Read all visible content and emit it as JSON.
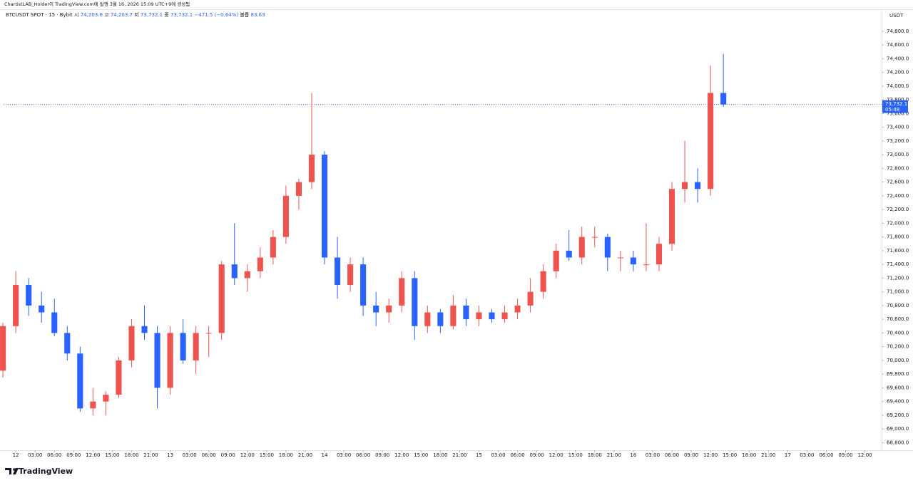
{
  "chart_data": {
    "type": "candlestick",
    "publisher_note": "ChartistLAB_Holder이 TradingView.com에 발행 3월 16, 2026 15:09 UTC+9에 생성됨",
    "title": "BTCUSDT SPOT · 15 · Bybit",
    "ohlc_legend": [
      {
        "label": "시",
        "value": "74,203.6"
      },
      {
        "label": "고",
        "value": "74,203.7"
      },
      {
        "label": "저",
        "value": "73,732.1"
      },
      {
        "label": "종",
        "value": "73,732.1"
      }
    ],
    "change": "−471.5 (−0.64%)",
    "volume": {
      "label": "볼륨",
      "value": "83.63"
    },
    "y_unit": "USDT",
    "brand": "TradingView",
    "up_color": "#ef5350",
    "down_color": "#2962ff",
    "last_price": {
      "value": 73732.1,
      "label": "73,732.1"
    },
    "countdown": "05:48",
    "candles": {
      "x": [
        -2,
        0,
        2,
        4,
        6,
        8,
        10,
        12,
        14,
        16,
        18,
        20,
        22,
        24,
        26,
        28,
        30,
        32,
        34,
        36,
        38,
        40,
        42,
        44,
        46,
        48,
        50,
        52,
        54,
        56,
        58,
        60,
        62,
        64,
        66,
        68,
        70,
        72,
        74,
        76,
        78,
        80,
        82,
        84,
        86,
        88,
        90,
        92,
        94,
        96,
        98,
        100,
        102,
        104,
        106,
        108,
        110
      ],
      "open": [
        69850,
        70500,
        71100,
        70800,
        70700,
        70400,
        70100,
        69300,
        69400,
        69500,
        70000,
        70500,
        70400,
        69600,
        70400,
        70000,
        70400,
        70400,
        71400,
        71200,
        71300,
        71500,
        71800,
        72400,
        72600,
        73000,
        71500,
        71100,
        71400,
        70800,
        70700,
        70800,
        71200,
        70500,
        70700,
        70500,
        70800,
        70600,
        70700,
        70600,
        70700,
        70800,
        71000,
        71300,
        71600,
        71500,
        71800,
        71800,
        71500,
        71500,
        71400,
        71400,
        71700,
        72500,
        72600,
        72500,
        73900
      ],
      "high": [
        70550,
        71300,
        71200,
        71000,
        70900,
        70500,
        70200,
        69600,
        69550,
        70050,
        70600,
        70800,
        70500,
        70500,
        70600,
        70500,
        70500,
        71450,
        72000,
        71400,
        71650,
        71900,
        72550,
        72650,
        73900,
        73050,
        71800,
        71500,
        71500,
        71000,
        70900,
        71300,
        71300,
        70800,
        70750,
        70950,
        70900,
        70800,
        70750,
        70800,
        70900,
        71200,
        71400,
        71700,
        71900,
        71950,
        71950,
        71850,
        71600,
        71600,
        72000,
        71800,
        72600,
        73200,
        72800,
        74300,
        74470
      ],
      "low": [
        69750,
        70400,
        70650,
        70550,
        70350,
        70000,
        69250,
        69200,
        69200,
        69450,
        69900,
        70300,
        69300,
        69500,
        69950,
        69800,
        70050,
        70300,
        71100,
        71000,
        71200,
        71400,
        71700,
        72200,
        72500,
        71400,
        70900,
        71000,
        70650,
        70500,
        70550,
        70700,
        70300,
        70400,
        70400,
        70450,
        70500,
        70500,
        70550,
        70550,
        70600,
        70700,
        70900,
        71200,
        71450,
        71400,
        71650,
        71300,
        71300,
        71300,
        71300,
        71300,
        71600,
        72300,
        72300,
        72400,
        73700
      ],
      "close": [
        70500,
        71100,
        70800,
        70700,
        70400,
        70100,
        69300,
        69400,
        69500,
        70000,
        70500,
        70400,
        69600,
        70400,
        70000,
        70400,
        70400,
        71400,
        71200,
        71300,
        71500,
        71800,
        72400,
        72600,
        73000,
        71500,
        71100,
        71400,
        70800,
        70700,
        70800,
        71200,
        70500,
        70700,
        70500,
        70800,
        70600,
        70700,
        70600,
        70700,
        70800,
        71000,
        71300,
        71600,
        71500,
        71800,
        71800,
        71500,
        71500,
        71400,
        71400,
        71700,
        72500,
        72600,
        72500,
        73900,
        73732.1
      ]
    },
    "xlim": [
      -1.9,
      134.6
    ],
    "xticks": [
      {
        "value": 0,
        "label": "12"
      },
      {
        "value": 3,
        "label": "03:00"
      },
      {
        "value": 6,
        "label": "06:00"
      },
      {
        "value": 9,
        "label": "09:00"
      },
      {
        "value": 12,
        "label": "12:00"
      },
      {
        "value": 15,
        "label": "15:00"
      },
      {
        "value": 18,
        "label": "18:00"
      },
      {
        "value": 21,
        "label": "21:00"
      },
      {
        "value": 24,
        "label": "13"
      },
      {
        "value": 27,
        "label": "03:00"
      },
      {
        "value": 30,
        "label": "06:00"
      },
      {
        "value": 33,
        "label": "09:00"
      },
      {
        "value": 36,
        "label": "12:00"
      },
      {
        "value": 39,
        "label": "15:00"
      },
      {
        "value": 42,
        "label": "18:00"
      },
      {
        "value": 45,
        "label": "21:00"
      },
      {
        "value": 48,
        "label": "14"
      },
      {
        "value": 51,
        "label": "03:00"
      },
      {
        "value": 54,
        "label": "06:00"
      },
      {
        "value": 57,
        "label": "09:00"
      },
      {
        "value": 60,
        "label": "12:00"
      },
      {
        "value": 63,
        "label": "15:00"
      },
      {
        "value": 66,
        "label": "18:00"
      },
      {
        "value": 69,
        "label": "21:00"
      },
      {
        "value": 72,
        "label": "15"
      },
      {
        "value": 75,
        "label": "03:00"
      },
      {
        "value": 78,
        "label": "06:00"
      },
      {
        "value": 81,
        "label": "09:00"
      },
      {
        "value": 84,
        "label": "12:00"
      },
      {
        "value": 87,
        "label": "15:00"
      },
      {
        "value": 90,
        "label": "18:00"
      },
      {
        "value": 93,
        "label": "21:00"
      },
      {
        "value": 96,
        "label": "16"
      },
      {
        "value": 99,
        "label": "03:00"
      },
      {
        "value": 102,
        "label": "06:00"
      },
      {
        "value": 105,
        "label": "09:00"
      },
      {
        "value": 108,
        "label": "12:00"
      },
      {
        "value": 111,
        "label": "15:00"
      },
      {
        "value": 114,
        "label": "18:00"
      },
      {
        "value": 117,
        "label": "21:00"
      },
      {
        "value": 120,
        "label": "17"
      },
      {
        "value": 123,
        "label": "03:00"
      },
      {
        "value": 126,
        "label": "06:00"
      },
      {
        "value": 129,
        "label": "09:00"
      },
      {
        "value": 132,
        "label": "12:00"
      }
    ],
    "ylim": [
      68690,
      75110
    ],
    "yticks": [
      {
        "value": 68800,
        "label": "68,800.0"
      },
      {
        "value": 69000,
        "label": "69,000.0"
      },
      {
        "value": 69200,
        "label": "69,200.0"
      },
      {
        "value": 69400,
        "label": "69,400.0"
      },
      {
        "value": 69600,
        "label": "69,600.0"
      },
      {
        "value": 69800,
        "label": "69,800.0"
      },
      {
        "value": 70000,
        "label": "70,000.0"
      },
      {
        "value": 70200,
        "label": "70,200.0"
      },
      {
        "value": 70400,
        "label": "70,400.0"
      },
      {
        "value": 70600,
        "label": "70,600.0"
      },
      {
        "value": 70800,
        "label": "70,800.0"
      },
      {
        "value": 71000,
        "label": "71,000.0"
      },
      {
        "value": 71200,
        "label": "71,200.0"
      },
      {
        "value": 71400,
        "label": "71,400.0"
      },
      {
        "value": 71600,
        "label": "71,600.0"
      },
      {
        "value": 71800,
        "label": "71,800.0"
      },
      {
        "value": 72000,
        "label": "72,000.0"
      },
      {
        "value": 72200,
        "label": "72,200.0"
      },
      {
        "value": 72400,
        "label": "72,400.0"
      },
      {
        "value": 72600,
        "label": "72,600.0"
      },
      {
        "value": 72800,
        "label": "72,800.0"
      },
      {
        "value": 73000,
        "label": "73,000.0"
      },
      {
        "value": 73200,
        "label": "73,200.0"
      },
      {
        "value": 73400,
        "label": "73,400.0"
      },
      {
        "value": 73600,
        "label": "73,600.0"
      },
      {
        "value": 73800,
        "label": "73,800.0"
      },
      {
        "value": 74000,
        "label": "74,000.0"
      },
      {
        "value": 74200,
        "label": "74,200.0"
      },
      {
        "value": 74400,
        "label": "74,400.0"
      },
      {
        "value": 74600,
        "label": "74,600.0"
      },
      {
        "value": 74800,
        "label": "74,800.0"
      }
    ],
    "grid": false
  }
}
